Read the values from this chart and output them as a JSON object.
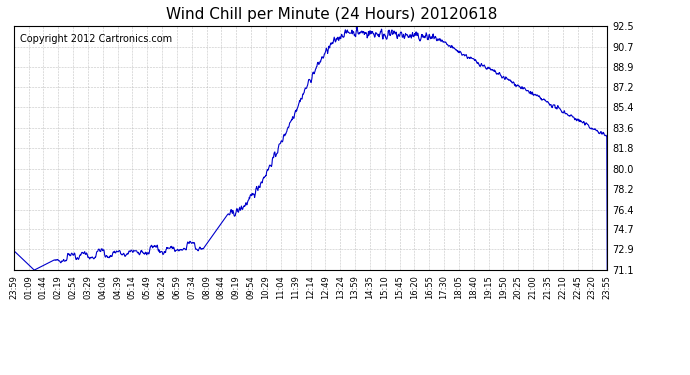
{
  "title": "Wind Chill per Minute (24 Hours) 20120618",
  "copyright_text": "Copyright 2012 Cartronics.com",
  "line_color": "#0000cc",
  "background_color": "#ffffff",
  "grid_color": "#aaaaaa",
  "ylim": [
    71.1,
    92.5
  ],
  "yticks": [
    71.1,
    72.9,
    74.7,
    76.4,
    78.2,
    80.0,
    81.8,
    83.6,
    85.4,
    87.2,
    88.9,
    90.7,
    92.5
  ],
  "num_points": 1440,
  "x_tick_labels": [
    "23:59",
    "01:09",
    "01:44",
    "02:19",
    "02:54",
    "03:29",
    "04:04",
    "04:39",
    "05:14",
    "05:49",
    "06:24",
    "06:59",
    "07:34",
    "08:09",
    "08:44",
    "09:19",
    "09:54",
    "10:29",
    "11:04",
    "11:39",
    "12:14",
    "12:49",
    "13:24",
    "13:59",
    "14:35",
    "15:10",
    "15:45",
    "16:20",
    "16:55",
    "17:30",
    "18:05",
    "18:40",
    "19:15",
    "19:50",
    "20:25",
    "21:00",
    "21:35",
    "22:10",
    "22:45",
    "23:20",
    "23:55"
  ]
}
